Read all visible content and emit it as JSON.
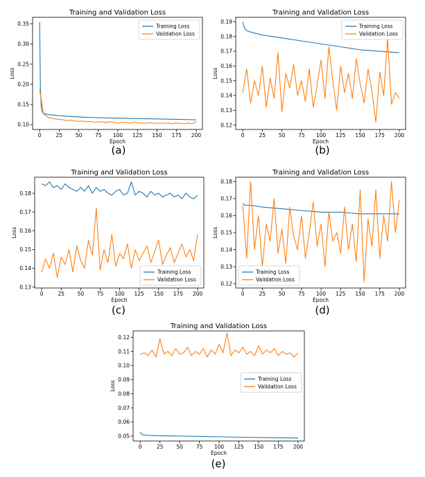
{
  "chart_data": [
    {
      "panel": "(a)",
      "type": "line",
      "title": "Training and Validation Loss",
      "xlabel": "Epoch",
      "ylabel": "Loss",
      "xlim": [
        -9,
        208
      ],
      "ylim": [
        0.088,
        0.366
      ],
      "xticks": [
        0,
        25,
        50,
        75,
        100,
        125,
        150,
        175,
        200
      ],
      "yticks": [
        0.1,
        0.15,
        0.2,
        0.25,
        0.3,
        0.35
      ],
      "legend": "top-right",
      "series": [
        {
          "name": "Training Loss",
          "color": "#1f77b4",
          "points": [
            [
              0,
              0.354
            ],
            [
              1,
              0.19
            ],
            [
              2,
              0.145
            ],
            [
              3,
              0.133
            ],
            [
              5,
              0.128
            ],
            [
              10,
              0.125
            ],
            [
              25,
              0.122
            ],
            [
              50,
              0.119
            ],
            [
              75,
              0.117
            ],
            [
              100,
              0.116
            ],
            [
              125,
              0.115
            ],
            [
              150,
              0.114
            ],
            [
              175,
              0.113
            ],
            [
              200,
              0.112
            ]
          ]
        },
        {
          "name": "Validation Loss",
          "color": "#ff7f0e",
          "start": 0,
          "step": 5,
          "values": [
            0.188,
            0.126,
            0.119,
            0.116,
            0.114,
            0.113,
            0.112,
            0.11,
            0.111,
            0.109,
            0.108,
            0.109,
            0.107,
            0.108,
            0.106,
            0.107,
            0.107,
            0.105,
            0.107,
            0.106,
            0.104,
            0.106,
            0.105,
            0.104,
            0.106,
            0.105,
            0.104,
            0.103,
            0.105,
            0.104,
            0.103,
            0.104,
            0.103,
            0.104,
            0.102,
            0.104,
            0.103,
            0.102,
            0.104,
            0.102,
            0.108
          ]
        }
      ]
    },
    {
      "panel": "(b)",
      "type": "line",
      "title": "Training and Validation Loss",
      "xlabel": "Epoch",
      "ylabel": "Loss",
      "xlim": [
        -9,
        208
      ],
      "ylim": [
        0.117,
        0.193
      ],
      "xticks": [
        0,
        25,
        50,
        75,
        100,
        125,
        150,
        175,
        200
      ],
      "yticks": [
        0.12,
        0.13,
        0.14,
        0.15,
        0.16,
        0.17,
        0.18,
        0.19
      ],
      "legend": "top-right",
      "series": [
        {
          "name": "Training Loss",
          "color": "#1f77b4",
          "points": [
            [
              0,
              0.19
            ],
            [
              2,
              0.186
            ],
            [
              5,
              0.184
            ],
            [
              10,
              0.183
            ],
            [
              25,
              0.181
            ],
            [
              50,
              0.179
            ],
            [
              75,
              0.177
            ],
            [
              100,
              0.175
            ],
            [
              125,
              0.173
            ],
            [
              150,
              0.171
            ],
            [
              175,
              0.17
            ],
            [
              200,
              0.169
            ]
          ]
        },
        {
          "name": "Validation Loss",
          "color": "#ff7f0e",
          "start": 0,
          "step": 5,
          "values": [
            0.142,
            0.158,
            0.135,
            0.15,
            0.14,
            0.16,
            0.132,
            0.152,
            0.138,
            0.169,
            0.129,
            0.155,
            0.145,
            0.161,
            0.14,
            0.15,
            0.136,
            0.158,
            0.132,
            0.147,
            0.164,
            0.138,
            0.173,
            0.15,
            0.13,
            0.16,
            0.142,
            0.155,
            0.138,
            0.165,
            0.148,
            0.135,
            0.158,
            0.143,
            0.122,
            0.156,
            0.14,
            0.179,
            0.134,
            0.142,
            0.138
          ]
        }
      ]
    },
    {
      "panel": "(c)",
      "type": "line",
      "title": "Training and Validation Loss",
      "xlabel": "Epoch",
      "ylabel": "Loss",
      "xlim": [
        -9,
        208
      ],
      "ylim": [
        0.1295,
        0.1885
      ],
      "xticks": [
        0,
        25,
        50,
        75,
        100,
        125,
        150,
        175,
        200
      ],
      "yticks": [
        0.13,
        0.14,
        0.15,
        0.16,
        0.17,
        0.18
      ],
      "legend": "bottom-right",
      "series": [
        {
          "name": "Training Loss",
          "color": "#1f77b4",
          "start": 0,
          "step": 5,
          "values": [
            0.185,
            0.184,
            0.186,
            0.183,
            0.184,
            0.182,
            0.185,
            0.183,
            0.182,
            0.181,
            0.183,
            0.181,
            0.184,
            0.18,
            0.183,
            0.181,
            0.182,
            0.18,
            0.179,
            0.181,
            0.182,
            0.179,
            0.18,
            0.186,
            0.179,
            0.181,
            0.18,
            0.178,
            0.181,
            0.179,
            0.18,
            0.178,
            0.179,
            0.18,
            0.178,
            0.179,
            0.177,
            0.18,
            0.178,
            0.177,
            0.179
          ]
        },
        {
          "name": "Validation Loss",
          "color": "#ff7f0e",
          "start": 0,
          "step": 5,
          "values": [
            0.138,
            0.145,
            0.14,
            0.148,
            0.135,
            0.146,
            0.142,
            0.15,
            0.138,
            0.152,
            0.144,
            0.14,
            0.155,
            0.147,
            0.172,
            0.139,
            0.15,
            0.143,
            0.158,
            0.141,
            0.148,
            0.145,
            0.153,
            0.14,
            0.15,
            0.144,
            0.148,
            0.152,
            0.143,
            0.149,
            0.155,
            0.142,
            0.147,
            0.151,
            0.143,
            0.148,
            0.153,
            0.146,
            0.15,
            0.144,
            0.158
          ]
        }
      ]
    },
    {
      "panel": "(d)",
      "type": "line",
      "title": "Training and Validation Loss",
      "xlabel": "Epoch",
      "ylabel": "Loss",
      "xlim": [
        -9,
        208
      ],
      "ylim": [
        0.1175,
        0.1825
      ],
      "xticks": [
        0,
        25,
        50,
        75,
        100,
        125,
        150,
        175,
        200
      ],
      "yticks": [
        0.12,
        0.13,
        0.14,
        0.15,
        0.16,
        0.17,
        0.18
      ],
      "legend": "bottom-left",
      "series": [
        {
          "name": "Training Loss",
          "color": "#1f77b4",
          "points": [
            [
              0,
              0.167
            ],
            [
              3,
              0.166
            ],
            [
              10,
              0.166
            ],
            [
              25,
              0.165
            ],
            [
              50,
              0.164
            ],
            [
              75,
              0.163
            ],
            [
              100,
              0.162
            ],
            [
              125,
              0.162
            ],
            [
              150,
              0.161
            ],
            [
              175,
              0.161
            ],
            [
              200,
              0.161
            ]
          ]
        },
        {
          "name": "Validation Loss",
          "color": "#ff7f0e",
          "start": 0,
          "step": 5,
          "values": [
            0.166,
            0.135,
            0.18,
            0.14,
            0.16,
            0.13,
            0.155,
            0.145,
            0.17,
            0.138,
            0.152,
            0.132,
            0.165,
            0.148,
            0.14,
            0.16,
            0.135,
            0.15,
            0.168,
            0.142,
            0.155,
            0.13,
            0.162,
            0.145,
            0.15,
            0.138,
            0.165,
            0.14,
            0.155,
            0.133,
            0.175,
            0.121,
            0.158,
            0.142,
            0.175,
            0.135,
            0.16,
            0.145,
            0.18,
            0.15,
            0.169
          ]
        }
      ]
    },
    {
      "panel": "(e)",
      "type": "line",
      "title": "Training and Validation Loss",
      "xlabel": "Epoch",
      "ylabel": "Loss",
      "xlim": [
        -9,
        208
      ],
      "ylim": [
        0.0465,
        0.1245
      ],
      "xticks": [
        0,
        25,
        50,
        75,
        100,
        125,
        150,
        175,
        200
      ],
      "yticks": [
        0.05,
        0.06,
        0.07,
        0.08,
        0.09,
        0.1,
        0.11,
        0.12
      ],
      "legend": "center-right",
      "series": [
        {
          "name": "Training Loss",
          "color": "#1f77b4",
          "points": [
            [
              0,
              0.053
            ],
            [
              2,
              0.051
            ],
            [
              10,
              0.0505
            ],
            [
              25,
              0.0502
            ],
            [
              50,
              0.05
            ],
            [
              75,
              0.0498
            ],
            [
              100,
              0.0495
            ],
            [
              125,
              0.0492
            ],
            [
              150,
              0.049
            ],
            [
              175,
              0.0488
            ],
            [
              200,
              0.0486
            ]
          ]
        },
        {
          "name": "Validation Loss",
          "color": "#ff7f0e",
          "start": 0,
          "step": 5,
          "values": [
            0.108,
            0.109,
            0.107,
            0.111,
            0.106,
            0.119,
            0.108,
            0.11,
            0.107,
            0.112,
            0.108,
            0.109,
            0.113,
            0.107,
            0.11,
            0.108,
            0.112,
            0.106,
            0.111,
            0.108,
            0.115,
            0.109,
            0.123,
            0.107,
            0.111,
            0.109,
            0.113,
            0.108,
            0.11,
            0.107,
            0.114,
            0.108,
            0.111,
            0.109,
            0.112,
            0.107,
            0.11,
            0.108,
            0.109,
            0.106,
            0.109
          ]
        }
      ]
    }
  ],
  "captions": [
    "(a)",
    "(b)",
    "(c)",
    "(d)",
    "(e)"
  ]
}
